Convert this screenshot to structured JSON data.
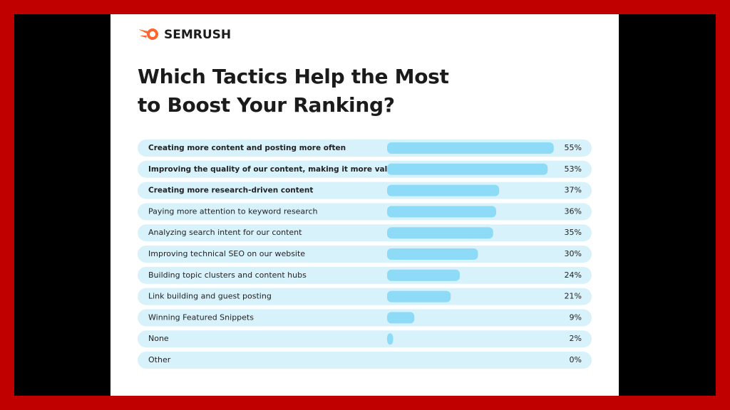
{
  "brand": "SEMRUSH",
  "chart_data": {
    "type": "hbar",
    "title": "Which Tactics Help the Most to Boost Your Ranking?",
    "categories": [
      "Creating more content and posting  more often",
      "Improving the quality of our content, making it more valuable",
      "Creating more research-driven content",
      "Paying more attention to keyword research",
      "Analyzing search intent for our content",
      "Improving technical SEO on our website",
      "Building topic clusters and content hubs",
      "Link building and guest posting",
      "Winning Featured Snippets",
      "None",
      "Other"
    ],
    "values": [
      55,
      53,
      37,
      36,
      35,
      30,
      24,
      21,
      9,
      2,
      0
    ],
    "value_labels": [
      "55%",
      "53%",
      "37%",
      "36%",
      "35%",
      "30%",
      "24%",
      "21%",
      "9%",
      "2%",
      "0%"
    ],
    "color": "#8edbf7"
  }
}
